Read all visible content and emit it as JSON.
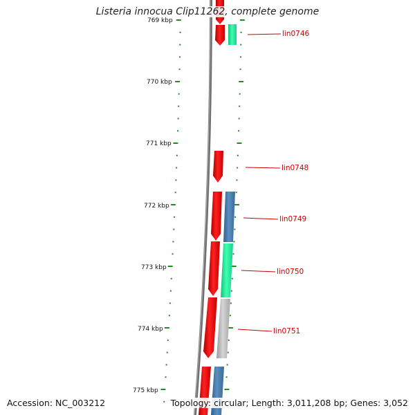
{
  "title": "Listeria innocua Clip11262, complete genome",
  "footer": {
    "accession": "Accession: NC_003212",
    "topology": "Topology: circular; Length: 3,011,208 bp; Genes: 3,052"
  },
  "colors": {
    "cds_forward": "#ff1a1a",
    "cds_blue": "#4a7fb0",
    "cds_green": "#22e89a",
    "cds_gray": "#b8b8b8",
    "backbone": "#808080",
    "ticks": "#228b22",
    "gene_label": "#cc0000"
  },
  "scale": {
    "tick_labels": [
      "769 kbp",
      "770 kbp",
      "771 kbp",
      "772 kbp",
      "773 kbp",
      "774 kbp",
      "775 kbp"
    ]
  },
  "genes": [
    {
      "label": "lin0746",
      "feature": "cds_green"
    },
    {
      "label": "lin0748",
      "feature": "cds_forward"
    },
    {
      "label": "lin0749",
      "feature": "cds_blue"
    },
    {
      "label": "lin0750",
      "feature": "cds_green"
    },
    {
      "label": "lin0751",
      "feature": "cds_gray"
    }
  ]
}
